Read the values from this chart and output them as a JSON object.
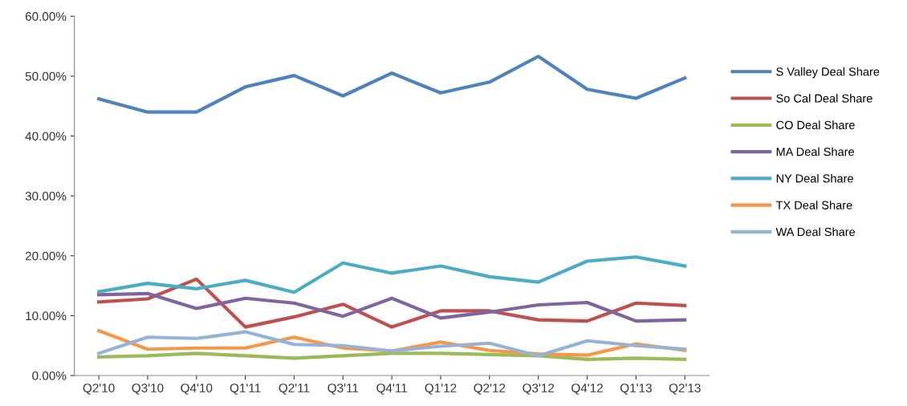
{
  "chart_data": {
    "type": "line",
    "categories": [
      "Q2'10",
      "Q3'10",
      "Q4'10",
      "Q1'11",
      "Q2'11",
      "Q3'11",
      "Q4'11",
      "Q1'12",
      "Q2'12",
      "Q3'12",
      "Q4'12",
      "Q1'13",
      "Q2'13"
    ],
    "series": [
      {
        "name": "S Valley Deal Share",
        "color": "#4f81bd",
        "values": [
          46.2,
          44,
          44,
          48.2,
          50.1,
          46.7,
          50.5,
          47.2,
          49,
          53.3,
          47.8,
          46.3,
          49.7
        ]
      },
      {
        "name": "So Cal Deal Share",
        "color": "#c0504d",
        "values": [
          12.3,
          12.8,
          16.1,
          8.1,
          9.8,
          11.9,
          8.1,
          10.8,
          10.8,
          9.3,
          9.1,
          12.1,
          11.7
        ]
      },
      {
        "name": "CO Deal Share",
        "color": "#9bbb59",
        "values": [
          3.1,
          3.3,
          3.7,
          3.3,
          2.9,
          3.3,
          3.7,
          3.7,
          3.5,
          3.3,
          2.7,
          2.9,
          2.7
        ]
      },
      {
        "name": "MA Deal Share",
        "color": "#8064a2",
        "values": [
          13.5,
          13.7,
          11.2,
          12.9,
          12.1,
          9.9,
          12.9,
          9.6,
          10.6,
          11.8,
          12.2,
          9.1,
          9.3
        ]
      },
      {
        "name": "NY Deal Share",
        "color": "#4bacc6",
        "values": [
          14,
          15.4,
          14.5,
          15.9,
          13.9,
          18.8,
          17.1,
          18.3,
          16.5,
          15.6,
          19.1,
          19.8,
          18.3
        ]
      },
      {
        "name": "TX Deal Share",
        "color": "#f79646",
        "values": [
          7.5,
          4.4,
          4.6,
          4.6,
          6.4,
          4.6,
          4.1,
          5.6,
          4.2,
          3.6,
          3.4,
          5.3,
          4.2
        ]
      },
      {
        "name": "WA Deal Share",
        "color": "#95b3d7",
        "values": [
          3.7,
          6.4,
          6.2,
          7.3,
          5.2,
          5,
          4.1,
          4.9,
          5.4,
          3.3,
          5.8,
          5,
          4.4
        ]
      }
    ],
    "ylim": [
      0,
      60
    ],
    "yticks": [
      {
        "value": 0,
        "label": "0.00%"
      },
      {
        "value": 10,
        "label": "10.00%"
      },
      {
        "value": 20,
        "label": "20.00%"
      },
      {
        "value": 30,
        "label": "30.00%"
      },
      {
        "value": 40,
        "label": "40.00%"
      },
      {
        "value": 50,
        "label": "50.00%"
      },
      {
        "value": 60,
        "label": "60.00%"
      }
    ],
    "grid": false,
    "legend": "right",
    "marker": "none",
    "line_style": "solid"
  }
}
